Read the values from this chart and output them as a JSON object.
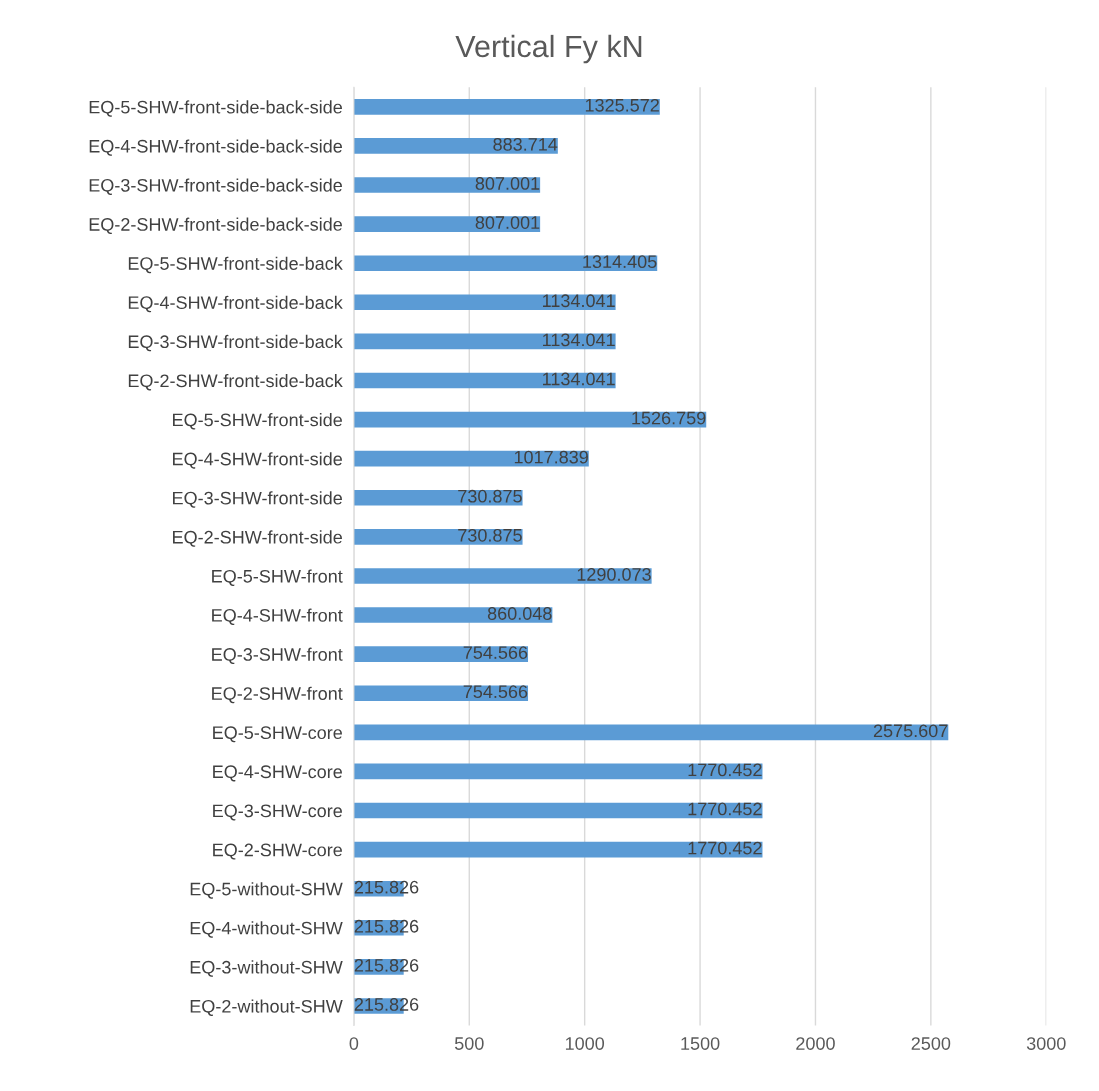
{
  "chart_data": {
    "type": "bar",
    "orientation": "horizontal",
    "title": "Vertical Fy kN",
    "categories": [
      "EQ-5-SHW-front-side-back-side",
      "EQ-4-SHW-front-side-back-side",
      "EQ-3-SHW-front-side-back-side",
      "EQ-2-SHW-front-side-back-side",
      "EQ-5-SHW-front-side-back",
      "EQ-4-SHW-front-side-back",
      "EQ-3-SHW-front-side-back",
      "EQ-2-SHW-front-side-back",
      "EQ-5-SHW-front-side",
      "EQ-4-SHW-front-side",
      "EQ-3-SHW-front-side",
      "EQ-2-SHW-front-side",
      "EQ-5-SHW-front",
      "EQ-4-SHW-front",
      "EQ-3-SHW-front",
      "EQ-2-SHW-front",
      "EQ-5-SHW-core",
      "EQ-4-SHW-core",
      "EQ-3-SHW-core",
      "EQ-2-SHW-core",
      "EQ-5-without-SHW",
      "EQ-4-without-SHW",
      "EQ-3-without-SHW",
      "EQ-2-without-SHW"
    ],
    "values": [
      1325.572,
      883.714,
      807.001,
      807.001,
      1314.405,
      1134.041,
      1134.041,
      1134.041,
      1526.759,
      1017.839,
      730.875,
      730.875,
      1290.073,
      860.048,
      754.566,
      754.566,
      2575.607,
      1770.452,
      1770.452,
      1770.452,
      215.826,
      215.826,
      215.826,
      215.826
    ],
    "color": "#5b9bd5",
    "xlim": [
      0,
      3000
    ],
    "xticks": [
      0,
      500,
      1000,
      1500,
      2000,
      2500,
      3000
    ],
    "grid": "x",
    "data_labels": true
  }
}
